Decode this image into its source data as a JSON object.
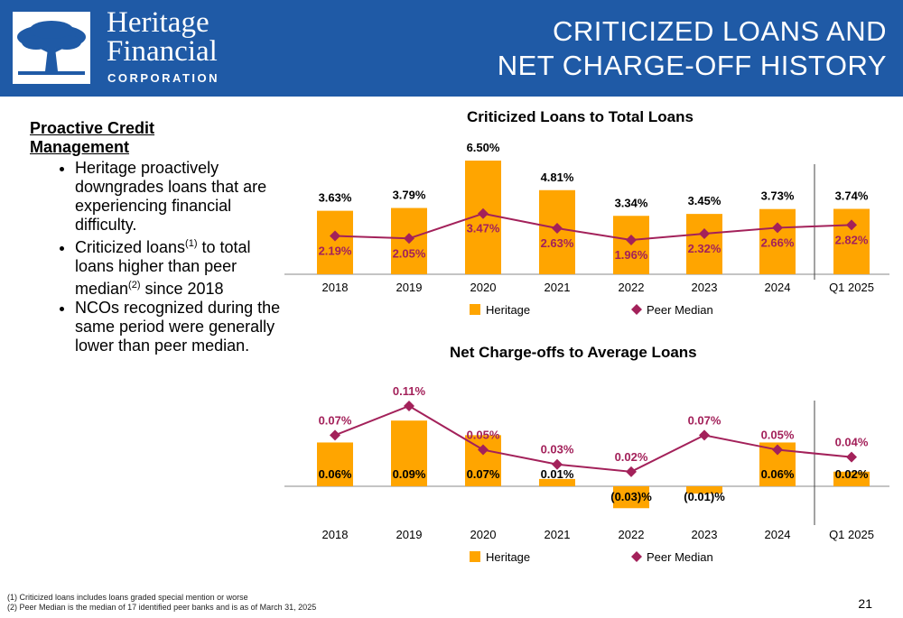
{
  "header": {
    "title_line1": "CRITICIZED LOANS AND",
    "title_line2": "NET CHARGE-OFF HISTORY",
    "logo_line1": "Heritage",
    "logo_line2": "Financial",
    "logo_line3": "CORPORATION"
  },
  "left": {
    "heading_line1": "Proactive Credit",
    "heading_line2": "Management",
    "bullet1": "Heritage proactively downgrades loans that are experiencing financial difficulty.",
    "bullet2_a": "Criticized loans",
    "bullet2_sup1": "(1)",
    "bullet2_b": " to total loans higher than peer median",
    "bullet2_sup2": "(2)",
    "bullet2_c": " since 2018",
    "bullet3": "NCOs recognized during the same period were generally lower than peer median."
  },
  "colors": {
    "header": "#1f5aa6",
    "heritage": "#ffa500",
    "peer": "#a3215a"
  },
  "chart_data": [
    {
      "type": "bar",
      "title": "Criticized Loans to Total Loans",
      "categories": [
        "2018",
        "2019",
        "2020",
        "2021",
        "2022",
        "2023",
        "2024",
        "Q1 2025"
      ],
      "bar_labels": [
        "3.63%",
        "3.79%",
        "6.50%",
        "4.81%",
        "3.34%",
        "3.45%",
        "3.73%",
        "3.74%"
      ],
      "line_labels": [
        "2.19%",
        "2.05%",
        "3.47%",
        "2.63%",
        "1.96%",
        "2.32%",
        "2.66%",
        "2.82%"
      ],
      "series": [
        {
          "name": "Heritage",
          "type": "bar",
          "values": [
            3.63,
            3.79,
            6.5,
            4.81,
            3.34,
            3.45,
            3.73,
            3.74
          ]
        },
        {
          "name": "Peer Median",
          "type": "line",
          "values": [
            2.19,
            2.05,
            3.47,
            2.63,
            1.96,
            2.32,
            2.66,
            2.82
          ]
        }
      ],
      "ylim": [
        0,
        6.5
      ],
      "legend": "bottom",
      "grid": false
    },
    {
      "type": "bar",
      "title": "Net Charge-offs to Average Loans",
      "categories": [
        "2018",
        "2019",
        "2020",
        "2021",
        "2022",
        "2023",
        "2024",
        "Q1 2025"
      ],
      "bar_labels": [
        "0.06%",
        "0.09%",
        "0.07%",
        "0.01%",
        "(0.03)%",
        "(0.01)%",
        "0.06%",
        "0.02%"
      ],
      "line_labels": [
        "0.07%",
        "0.11%",
        "0.05%",
        "0.03%",
        "0.02%",
        "0.07%",
        "0.05%",
        "0.04%"
      ],
      "series": [
        {
          "name": "Heritage",
          "type": "bar",
          "values": [
            0.06,
            0.09,
            0.07,
            0.01,
            -0.03,
            -0.01,
            0.06,
            0.02
          ]
        },
        {
          "name": "Peer Median",
          "type": "line",
          "values": [
            0.07,
            0.11,
            0.05,
            0.03,
            0.02,
            0.07,
            0.05,
            0.04
          ]
        }
      ],
      "ylim": [
        -0.03,
        0.11
      ],
      "legend": "bottom",
      "grid": false
    }
  ],
  "footnotes": {
    "note1": "(1) Criticized loans includes loans graded special mention or worse",
    "note2": "(2) Peer Median is the median of 17 identified peer banks and is as of March 31, 2025"
  },
  "page_number": "21"
}
